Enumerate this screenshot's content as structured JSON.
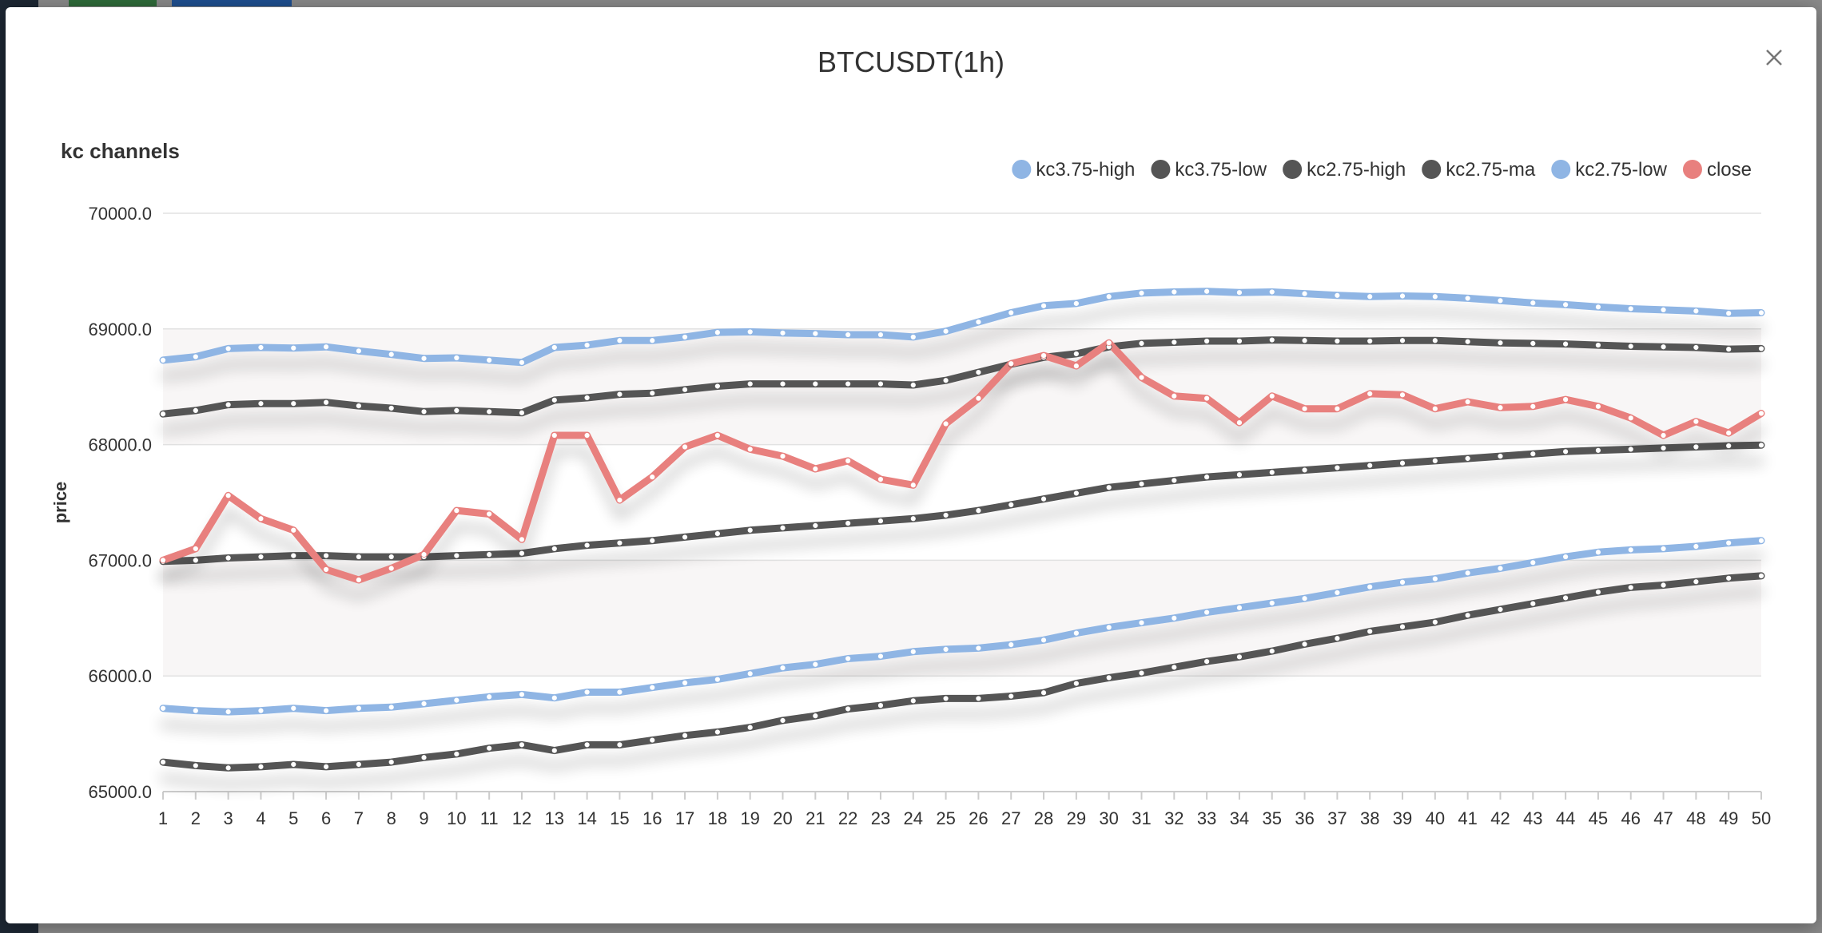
{
  "modal": {
    "title": "BTCUSDT(1h)",
    "close_icon": "close-icon"
  },
  "chart_data": {
    "type": "line",
    "title": "kc channels",
    "ylabel": "price",
    "xlabel": "",
    "ylim": [
      65000,
      70000
    ],
    "y_ticks": [
      "65000.0",
      "66000.0",
      "67000.0",
      "68000.0",
      "69000.0",
      "70000.0"
    ],
    "grid": true,
    "legend_placement": "top-right",
    "x": [
      1,
      2,
      3,
      4,
      5,
      6,
      7,
      8,
      9,
      10,
      11,
      12,
      13,
      14,
      15,
      16,
      17,
      18,
      19,
      20,
      21,
      22,
      23,
      24,
      25,
      26,
      27,
      28,
      29,
      30,
      31,
      32,
      33,
      34,
      35,
      36,
      37,
      38,
      39,
      40,
      41,
      42,
      43,
      44,
      45,
      46,
      47,
      48,
      49,
      50
    ],
    "series": [
      {
        "name": "kc3.75-high",
        "color": "#8fb5e4",
        "values": [
          68730,
          68760,
          68830,
          68840,
          68835,
          68845,
          68810,
          68780,
          68745,
          68750,
          68730,
          68710,
          68840,
          68860,
          68900,
          68900,
          68930,
          68970,
          68975,
          68965,
          68960,
          68950,
          68950,
          68930,
          68980,
          69060,
          69140,
          69200,
          69220,
          69280,
          69310,
          69320,
          69325,
          69315,
          69320,
          69305,
          69290,
          69280,
          69285,
          69280,
          69265,
          69245,
          69225,
          69210,
          69190,
          69175,
          69165,
          69155,
          69135,
          69140
        ]
      },
      {
        "name": "kc3.75-low",
        "color": "#555555",
        "values": [
          65255,
          65225,
          65205,
          65215,
          65235,
          65215,
          65235,
          65255,
          65295,
          65325,
          65375,
          65405,
          65355,
          65405,
          65405,
          65445,
          65485,
          65515,
          65555,
          65615,
          65655,
          65715,
          65745,
          65785,
          65805,
          65805,
          65825,
          65855,
          65935,
          65985,
          66025,
          66075,
          66125,
          66165,
          66215,
          66275,
          66325,
          66385,
          66425,
          66465,
          66525,
          66575,
          66625,
          66675,
          66725,
          66765,
          66785,
          66815,
          66845,
          66865
        ]
      },
      {
        "name": "kc2.75-high",
        "color": "#555555",
        "values": [
          68265,
          68295,
          68345,
          68355,
          68355,
          68365,
          68335,
          68315,
          68285,
          68295,
          68285,
          68275,
          68385,
          68405,
          68435,
          68445,
          68475,
          68505,
          68525,
          68525,
          68525,
          68525,
          68525,
          68515,
          68555,
          68625,
          68695,
          68755,
          68785,
          68845,
          68875,
          68885,
          68895,
          68895,
          68905,
          68900,
          68895,
          68895,
          68900,
          68900,
          68890,
          68880,
          68875,
          68870,
          68860,
          68850,
          68845,
          68840,
          68825,
          68830
        ]
      },
      {
        "name": "kc2.75-ma",
        "color": "#555555",
        "values": [
          66990,
          67000,
          67020,
          67030,
          67040,
          67040,
          67030,
          67030,
          67030,
          67040,
          67050,
          67060,
          67100,
          67130,
          67150,
          67170,
          67200,
          67230,
          67260,
          67280,
          67300,
          67320,
          67340,
          67360,
          67390,
          67430,
          67480,
          67530,
          67580,
          67630,
          67660,
          67690,
          67720,
          67740,
          67760,
          67780,
          67800,
          67820,
          67840,
          67860,
          67880,
          67900,
          67920,
          67940,
          67950,
          67960,
          67970,
          67980,
          67990,
          67995
        ]
      },
      {
        "name": "kc2.75-low",
        "color": "#8fb5e4",
        "values": [
          65720,
          65700,
          65690,
          65700,
          65720,
          65700,
          65720,
          65730,
          65760,
          65790,
          65820,
          65840,
          65810,
          65860,
          65860,
          65900,
          65940,
          65970,
          66020,
          66070,
          66100,
          66150,
          66170,
          66210,
          66230,
          66240,
          66270,
          66310,
          66370,
          66420,
          66460,
          66500,
          66550,
          66590,
          66630,
          66670,
          66720,
          66770,
          66810,
          66840,
          66890,
          66930,
          66980,
          67030,
          67070,
          67090,
          67100,
          67120,
          67150,
          67170
        ]
      },
      {
        "name": "close",
        "color": "#e8807e",
        "values": [
          67000,
          67100,
          67560,
          67360,
          67260,
          66920,
          66830,
          66930,
          67050,
          67430,
          67400,
          67180,
          68080,
          68080,
          67520,
          67720,
          67980,
          68080,
          67960,
          67900,
          67790,
          67860,
          67700,
          67650,
          68180,
          68400,
          68700,
          68770,
          68680,
          68880,
          68580,
          68420,
          68400,
          68190,
          68420,
          68310,
          68310,
          68440,
          68430,
          68310,
          68370,
          68320,
          68330,
          68390,
          68330,
          68230,
          68080,
          68200,
          68100,
          68270
        ]
      }
    ]
  }
}
